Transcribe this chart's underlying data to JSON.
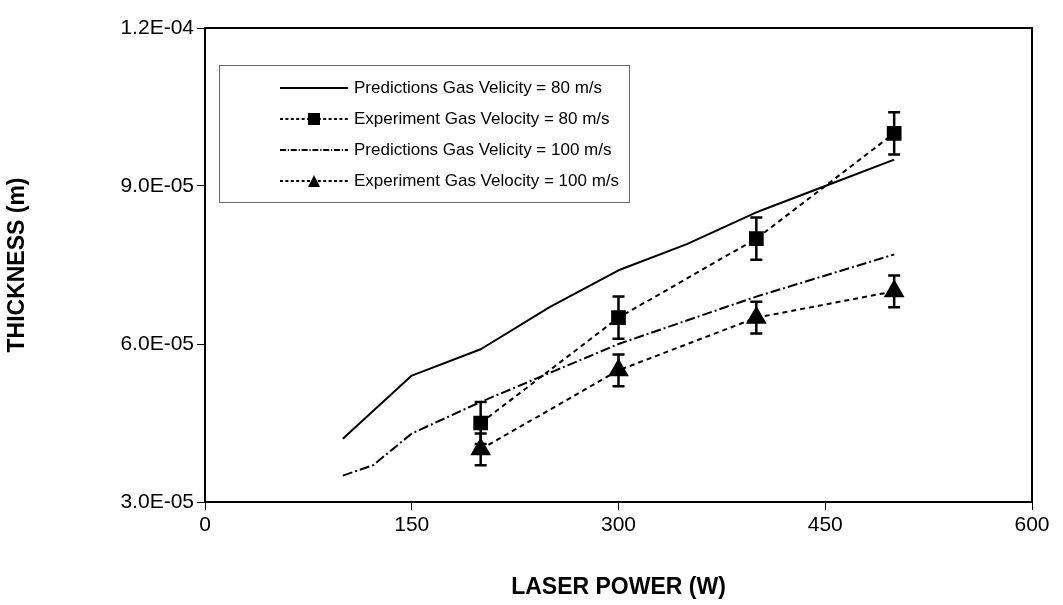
{
  "chart_data": {
    "type": "line",
    "xlabel": "LASER POWER (W)",
    "ylabel": "THICKNESS (m)",
    "xlim": [
      0,
      600
    ],
    "xticks": [
      0,
      150,
      300,
      450,
      600
    ],
    "ylim": [
      3e-05,
      0.00012
    ],
    "yticks": [
      {
        "value": 3e-05,
        "label": "3.0E-05"
      },
      {
        "value": 6e-05,
        "label": "6.0E-05"
      },
      {
        "value": 9e-05,
        "label": "9.0E-05"
      },
      {
        "value": 0.00012,
        "label": "1.2E-04"
      }
    ],
    "grid": false,
    "legend": "top left",
    "series": [
      {
        "name": "Predictions Gas Velicity = 80 m/s",
        "color": "#000000",
        "line_style": "solid",
        "marker": "none",
        "x": [
          100,
          150,
          200,
          250,
          300,
          350,
          400,
          450,
          500
        ],
        "values": [
          4.2e-05,
          5.4e-05,
          5.9e-05,
          6.7e-05,
          7.4e-05,
          7.9e-05,
          8.5e-05,
          9e-05,
          9.5e-05
        ]
      },
      {
        "name": "Experiment Gas Velocity = 80 m/s",
        "color": "#000000",
        "line_style": "dotted",
        "marker": "square",
        "x": [
          200,
          300,
          400,
          500
        ],
        "values": [
          4.5e-05,
          6.5e-05,
          8e-05,
          0.0001
        ],
        "errors": [
          4e-06,
          4e-06,
          4e-06,
          4e-06
        ]
      },
      {
        "name": "Predictions Gas Velicity = 100 m/s",
        "color": "#000000",
        "line_style": "dashed",
        "marker": "none",
        "x": [
          100,
          122,
          150,
          200,
          300,
          400,
          500
        ],
        "values": [
          3.5e-05,
          3.7e-05,
          4.3e-05,
          4.9e-05,
          6e-05,
          6.9e-05,
          7.7e-05
        ]
      },
      {
        "name": "Experiment Gas Velocity = 100 m/s",
        "color": "#000000",
        "line_style": "dotted",
        "marker": "triangle",
        "x": [
          200,
          300,
          400,
          500
        ],
        "values": [
          4e-05,
          5.5e-05,
          6.5e-05,
          7e-05
        ],
        "errors": [
          3e-06,
          3e-06,
          3e-06,
          3e-06
        ]
      }
    ]
  }
}
